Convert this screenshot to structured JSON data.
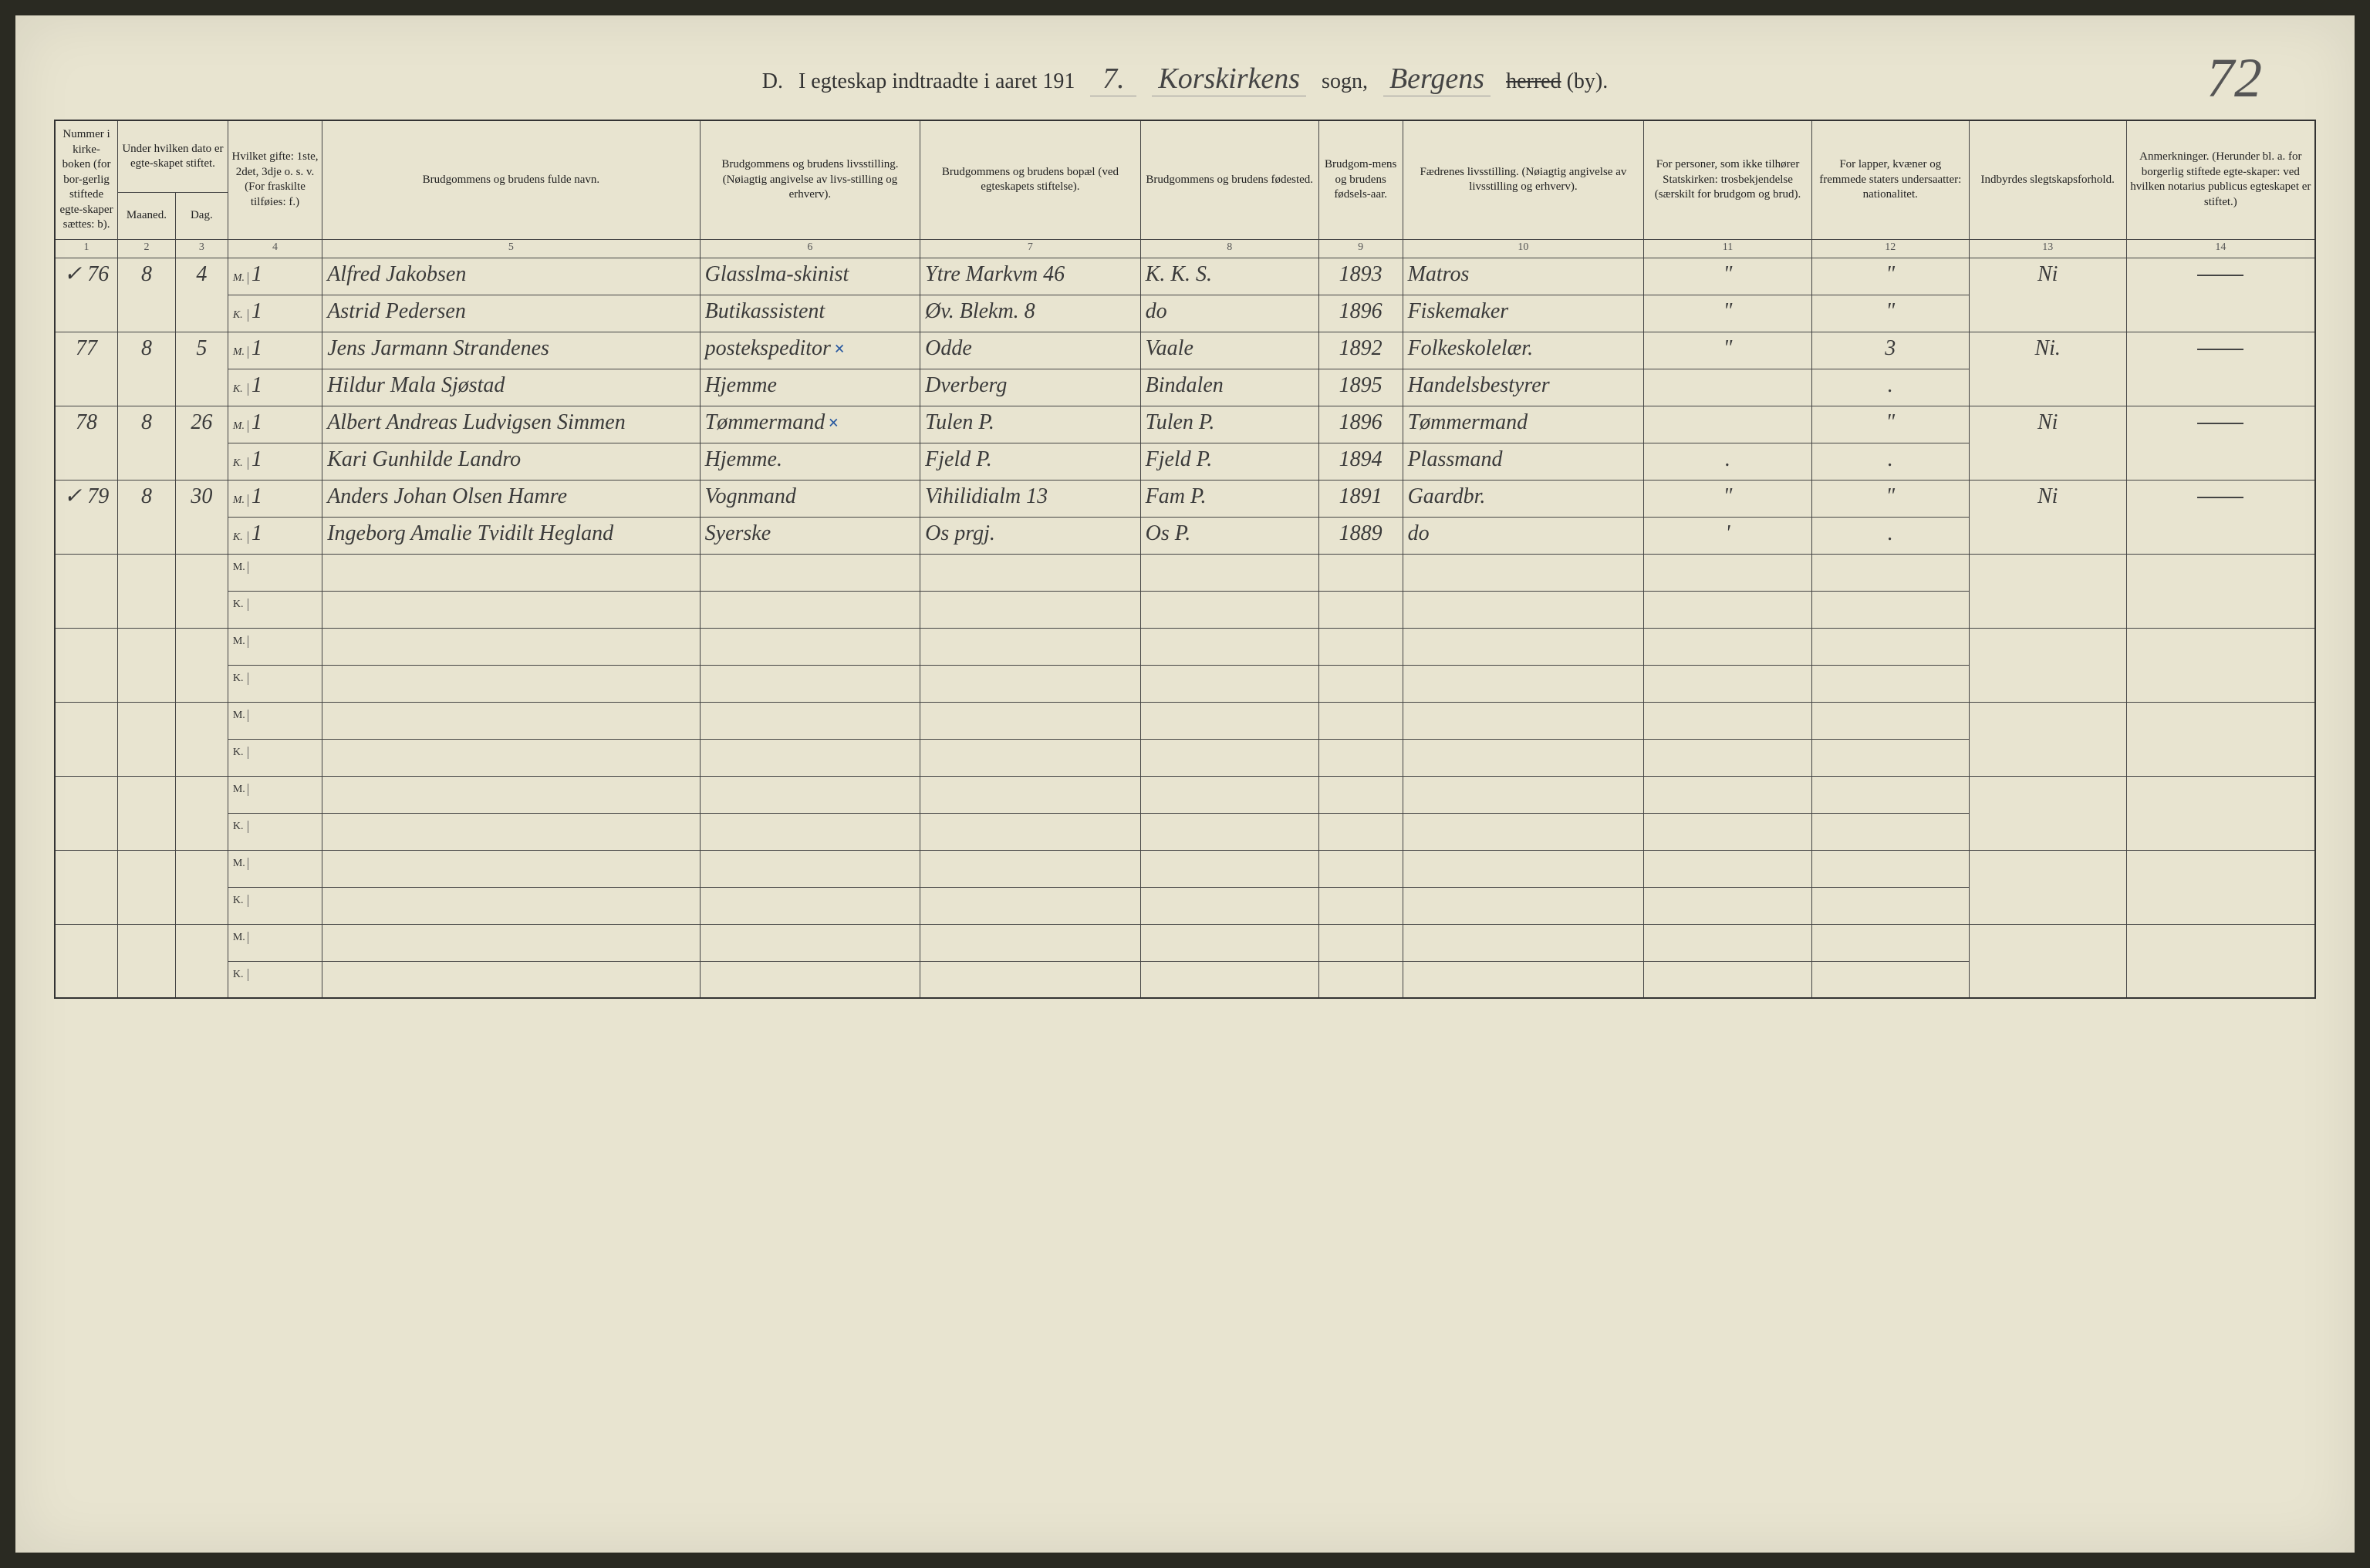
{
  "page_number_handwritten": "72",
  "title": {
    "prefix": "D.",
    "printed1": "I egteskap indtraadte i aaret 191",
    "year_suffix": "7.",
    "sogn_hw": "Korskirkens",
    "sogn_label": "sogn,",
    "region_hw": "Bergens",
    "herred_strike": "herred",
    "by_label": "(by)."
  },
  "headers": {
    "c1": "Nummer i kirke-boken (for bor-gerlig stiftede egte-skaper sættes: b).",
    "c2_top": "Under hvilken dato er egte-skapet stiftet.",
    "c2a": "Maaned.",
    "c2b": "Dag.",
    "c4": "Hvilket gifte: 1ste, 2det, 3dje o. s. v. (For fraskilte tilføies: f.)",
    "c5": "Brudgommens og brudens fulde navn.",
    "c6": "Brudgommens og brudens livsstilling. (Nøiagtig angivelse av livs-stilling og erhverv).",
    "c7": "Brudgommens og brudens bopæl (ved egteskapets stiftelse).",
    "c8": "Brudgommens og brudens fødested.",
    "c9": "Brudgom-mens og brudens fødsels-aar.",
    "c10": "Fædrenes livsstilling. (Nøiagtig angivelse av livsstilling og erhverv).",
    "c11": "For personer, som ikke tilhører Statskirken: trosbekjendelse (særskilt for brudgom og brud).",
    "c12": "For lapper, kvæner og fremmede staters undersaatter: nationalitet.",
    "c13": "Indbyrdes slegtskapsforhold.",
    "c14": "Anmerkninger. (Herunder bl. a. for borgerlig stiftede egte-skaper: ved hvilken notarius publicus egteskapet er stiftet.)"
  },
  "colnums": [
    "1",
    "2",
    "3",
    "4",
    "5",
    "6",
    "7",
    "8",
    "9",
    "10",
    "11",
    "12",
    "13",
    "14"
  ],
  "mk": {
    "M": "M.",
    "K": "K."
  },
  "rows": [
    {
      "num": "✓ 76",
      "month": "8",
      "day": "4",
      "m": {
        "gifte": "1",
        "navn": "Alfred Jakobsen",
        "stilling": "Glasslma-skinist",
        "bopel": "Ytre Markvm 46",
        "fodested": "K. K. S.",
        "aar": "1893",
        "faedre": "Matros",
        "c11": "\"",
        "c12": "\""
      },
      "k": {
        "gifte": "1",
        "navn": "Astrid Pedersen",
        "stilling": "Butikassistent",
        "bopel": "Øv. Blekm. 8",
        "fodested": "do",
        "aar": "1896",
        "faedre": "Fiskemaker",
        "c11": "\"",
        "c12": "\""
      },
      "c13": "Ni",
      "c14": "—"
    },
    {
      "num": "77",
      "month": "8",
      "day": "5",
      "m": {
        "gifte": "1",
        "navn": "Jens Jarmann Strandenes",
        "stilling": "postekspeditor",
        "xmark": true,
        "bopel": "Odde",
        "fodested": "Vaale",
        "aar": "1892",
        "faedre": "Folkeskolelær.",
        "c11": "\"",
        "c12": "3"
      },
      "k": {
        "gifte": "1",
        "navn": "Hildur Mala Sjøstad",
        "stilling": "Hjemme",
        "bopel": "Dverberg",
        "fodested": "Bindalen",
        "aar": "1895",
        "faedre": "Handelsbestyrer",
        "c11": "",
        "c12": "."
      },
      "c13": "Ni.",
      "c14": "—"
    },
    {
      "num": "78",
      "month": "8",
      "day": "26",
      "m": {
        "gifte": "1",
        "navn": "Albert Andreas Ludvigsen Simmen",
        "stilling": "Tømmermand",
        "xmark": true,
        "bopel": "Tulen P.",
        "fodested": "Tulen P.",
        "aar": "1896",
        "faedre": "Tømmermand",
        "c11": "",
        "c12": "\""
      },
      "k": {
        "gifte": "1",
        "navn": "Kari Gunhilde Landro",
        "stilling": "Hjemme.",
        "bopel": "Fjeld P.",
        "fodested": "Fjeld P.",
        "aar": "1894",
        "faedre": "Plassmand",
        "c11": ".",
        "c12": "."
      },
      "c13": "Ni",
      "c14": "—"
    },
    {
      "num": "✓ 79",
      "month": "8",
      "day": "30",
      "m": {
        "gifte": "1",
        "navn": "Anders Johan Olsen Hamre",
        "stilling": "Vognmand",
        "bopel": "Vihilidialm 13",
        "fodested": "Fam P.",
        "aar": "1891",
        "faedre": "Gaardbr.",
        "c11": "\"",
        "c12": "\""
      },
      "k": {
        "gifte": "1",
        "navn": "Ingeborg Amalie Tvidilt Hegland",
        "stilling": "Syerske",
        "bopel": "Os prgj.",
        "fodested": "Os P.",
        "aar": "1889",
        "faedre": "do",
        "c11": "'",
        "c12": "."
      },
      "c13": "Ni",
      "c14": "—"
    }
  ],
  "empty_pairs": 6
}
